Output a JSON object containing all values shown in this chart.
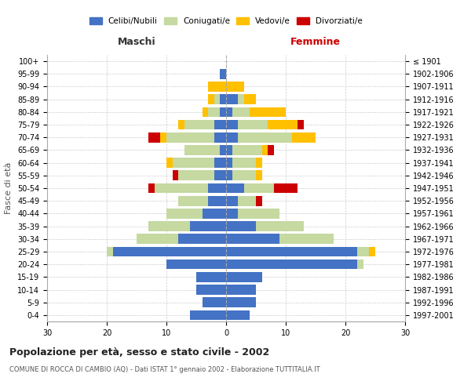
{
  "age_groups": [
    "0-4",
    "5-9",
    "10-14",
    "15-19",
    "20-24",
    "25-29",
    "30-34",
    "35-39",
    "40-44",
    "45-49",
    "50-54",
    "55-59",
    "60-64",
    "65-69",
    "70-74",
    "75-79",
    "80-84",
    "85-89",
    "90-94",
    "95-99",
    "100+"
  ],
  "birth_years": [
    "1997-2001",
    "1992-1996",
    "1987-1991",
    "1982-1986",
    "1977-1981",
    "1972-1976",
    "1967-1971",
    "1962-1966",
    "1957-1961",
    "1952-1956",
    "1947-1951",
    "1942-1946",
    "1937-1941",
    "1932-1936",
    "1927-1931",
    "1922-1926",
    "1917-1921",
    "1912-1916",
    "1907-1911",
    "1902-1906",
    "≤ 1901"
  ],
  "maschi": {
    "celibi": [
      6,
      4,
      5,
      5,
      10,
      19,
      8,
      6,
      4,
      3,
      3,
      2,
      2,
      1,
      2,
      2,
      1,
      1,
      0,
      1,
      0
    ],
    "coniugati": [
      0,
      0,
      0,
      0,
      0,
      1,
      7,
      7,
      6,
      5,
      9,
      6,
      7,
      6,
      8,
      5,
      2,
      1,
      0,
      0,
      0
    ],
    "vedovi": [
      0,
      0,
      0,
      0,
      0,
      0,
      0,
      0,
      0,
      0,
      0,
      0,
      1,
      0,
      1,
      1,
      1,
      1,
      3,
      0,
      0
    ],
    "divorziati": [
      0,
      0,
      0,
      0,
      0,
      0,
      0,
      0,
      0,
      0,
      1,
      1,
      0,
      0,
      2,
      0,
      0,
      0,
      0,
      0,
      0
    ]
  },
  "femmine": {
    "nubili": [
      4,
      5,
      5,
      6,
      22,
      22,
      9,
      5,
      2,
      2,
      3,
      1,
      1,
      1,
      2,
      2,
      1,
      2,
      0,
      0,
      0
    ],
    "coniugate": [
      0,
      0,
      0,
      0,
      1,
      2,
      9,
      8,
      7,
      3,
      5,
      4,
      4,
      5,
      9,
      5,
      3,
      1,
      0,
      0,
      0
    ],
    "vedove": [
      0,
      0,
      0,
      0,
      0,
      1,
      0,
      0,
      0,
      0,
      0,
      1,
      1,
      1,
      4,
      5,
      6,
      2,
      3,
      0,
      0
    ],
    "divorziate": [
      0,
      0,
      0,
      0,
      0,
      0,
      0,
      0,
      0,
      1,
      4,
      0,
      0,
      1,
      0,
      1,
      0,
      0,
      0,
      0,
      0
    ]
  },
  "colors": {
    "celibi": "#4472c4",
    "coniugati": "#c5d9a0",
    "vedovi": "#ffc000",
    "divorziati": "#cc0000"
  },
  "xlim": 30,
  "title": "Popolazione per età, sesso e stato civile - 2002",
  "subtitle": "COMUNE DI ROCCA DI CAMBIO (AQ) - Dati ISTAT 1° gennaio 2002 - Elaborazione TUTTITALIA.IT",
  "ylabel_left": "Fasce di età",
  "legend_labels": [
    "Celibi/Nubili",
    "Coniugati/e",
    "Vedovi/e",
    "Divorziati/e"
  ],
  "maschi_label": "Maschi",
  "femmine_label": "Femmine",
  "background_color": "#ffffff",
  "grid_color": "#cccccc"
}
